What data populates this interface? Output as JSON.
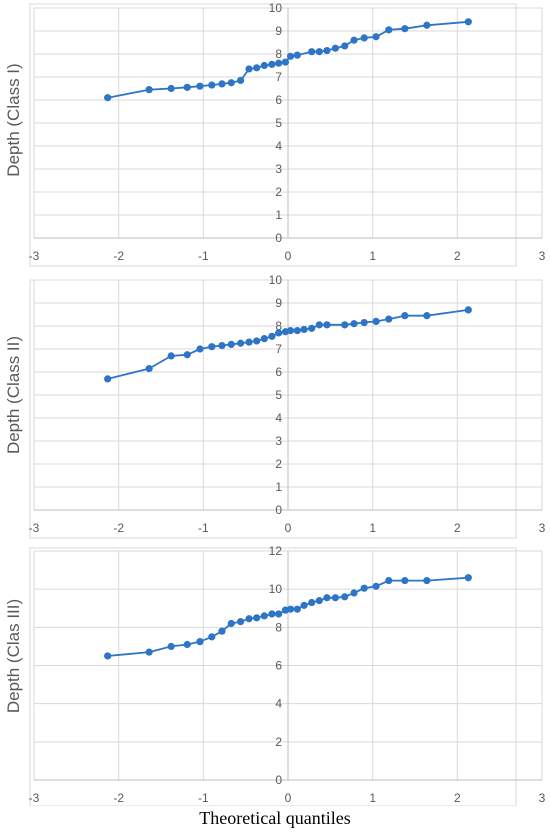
{
  "colors": {
    "series": "#2e75c7",
    "grid": "#d9d9d9",
    "axis": "#bfbfbf",
    "text": "#595959",
    "frame": "#d9d9d9"
  },
  "xtitle": "Theoretical quantiles",
  "chart_data": [
    {
      "type": "line",
      "ylabel": "Depth (Class I)",
      "xlim": [
        -3,
        3
      ],
      "ylim": [
        0,
        10
      ],
      "ystep": 1,
      "xticks": [
        -3,
        -2,
        -1,
        0,
        1,
        2,
        3
      ],
      "series": [
        {
          "x": [
            -2.13,
            -1.64,
            -1.38,
            -1.19,
            -1.04,
            -0.9,
            -0.78,
            -0.67,
            -0.56,
            -0.46,
            -0.37,
            -0.28,
            -0.19,
            -0.11,
            -0.03,
            0.03,
            0.11,
            0.28,
            0.37,
            0.46,
            0.56,
            0.67,
            0.78,
            0.9,
            1.04,
            1.19,
            1.38,
            1.64,
            2.13
          ],
          "y": [
            6.1,
            6.45,
            6.5,
            6.55,
            6.6,
            6.65,
            6.7,
            6.75,
            6.85,
            7.35,
            7.4,
            7.5,
            7.55,
            7.6,
            7.65,
            7.9,
            7.95,
            8.1,
            8.1,
            8.15,
            8.25,
            8.35,
            8.6,
            8.7,
            8.75,
            9.05,
            9.1,
            9.25,
            9.4
          ]
        }
      ]
    },
    {
      "type": "line",
      "ylabel": "Depth (Class II)",
      "xlim": [
        -3,
        3
      ],
      "ylim": [
        0,
        10
      ],
      "ystep": 1,
      "xticks": [
        -3,
        -2,
        -1,
        0,
        1,
        2,
        3
      ],
      "series": [
        {
          "x": [
            -2.13,
            -1.64,
            -1.38,
            -1.19,
            -1.04,
            -0.9,
            -0.78,
            -0.67,
            -0.56,
            -0.46,
            -0.37,
            -0.28,
            -0.19,
            -0.11,
            -0.03,
            0.03,
            0.11,
            0.19,
            0.28,
            0.37,
            0.46,
            0.67,
            0.78,
            0.9,
            1.04,
            1.19,
            1.38,
            1.64,
            2.13
          ],
          "y": [
            5.7,
            6.15,
            6.7,
            6.75,
            7.0,
            7.1,
            7.15,
            7.2,
            7.25,
            7.3,
            7.35,
            7.45,
            7.55,
            7.7,
            7.75,
            7.8,
            7.8,
            7.85,
            7.9,
            8.05,
            8.05,
            8.05,
            8.1,
            8.15,
            8.2,
            8.3,
            8.45,
            8.45,
            8.7
          ]
        }
      ]
    },
    {
      "type": "line",
      "ylabel": "Depth (Clas III)",
      "xlim": [
        -3,
        3
      ],
      "ylim": [
        0,
        12
      ],
      "ystep": 2,
      "xticks": [
        -3,
        -2,
        -1,
        0,
        1,
        2,
        3
      ],
      "series": [
        {
          "x": [
            -2.13,
            -1.64,
            -1.38,
            -1.19,
            -1.04,
            -0.9,
            -0.78,
            -0.67,
            -0.56,
            -0.46,
            -0.37,
            -0.28,
            -0.19,
            -0.11,
            -0.03,
            0.03,
            0.11,
            0.19,
            0.28,
            0.37,
            0.46,
            0.56,
            0.67,
            0.78,
            0.9,
            1.04,
            1.19,
            1.38,
            1.64,
            2.13
          ],
          "y": [
            6.5,
            6.7,
            7.0,
            7.1,
            7.25,
            7.5,
            7.8,
            8.2,
            8.3,
            8.45,
            8.5,
            8.6,
            8.7,
            8.7,
            8.9,
            8.95,
            8.95,
            9.15,
            9.3,
            9.4,
            9.55,
            9.55,
            9.6,
            9.8,
            10.05,
            10.15,
            10.45,
            10.45,
            10.45,
            10.6
          ]
        }
      ]
    }
  ]
}
